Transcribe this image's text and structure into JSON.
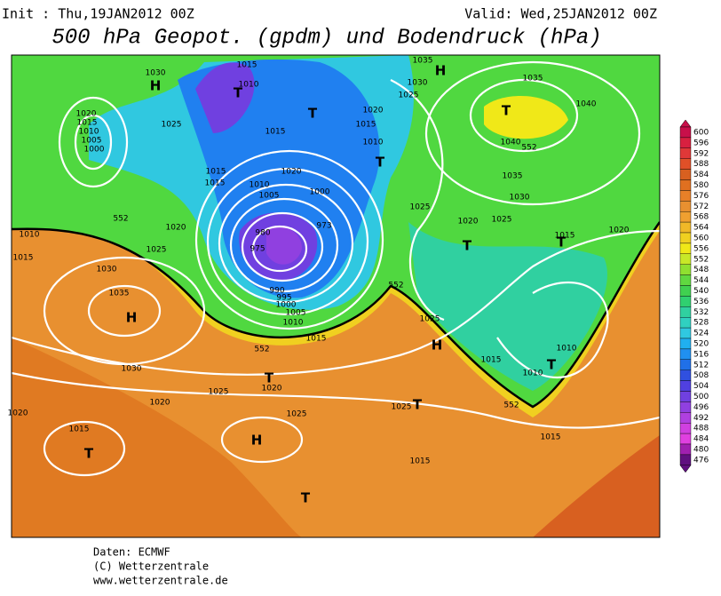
{
  "header": {
    "init": "Init : Thu,19JAN2012 00Z",
    "valid": "Valid: Wed,25JAN2012 00Z",
    "title": "500 hPa Geopot. (gpdm) und Bodendruck (hPa)"
  },
  "colorbar": {
    "labels": [
      600,
      596,
      592,
      588,
      584,
      580,
      576,
      572,
      568,
      564,
      560,
      556,
      552,
      548,
      544,
      540,
      536,
      532,
      528,
      524,
      520,
      516,
      512,
      508,
      504,
      500,
      496,
      492,
      488,
      484,
      480,
      476
    ],
    "colors": [
      "#c8104a",
      "#d82040",
      "#e03838",
      "#e05028",
      "#d86020",
      "#e07020",
      "#e88028",
      "#e89030",
      "#f0a030",
      "#f0b828",
      "#f0d020",
      "#f0e818",
      "#c8e828",
      "#90e030",
      "#60d840",
      "#40d050",
      "#30d070",
      "#30d0a0",
      "#30d0c0",
      "#30c8e0",
      "#20b0f0",
      "#2090f0",
      "#2070e8",
      "#3050e0",
      "#5040e0",
      "#7040e0",
      "#9040e0",
      "#b040e0",
      "#d040e0",
      "#e040e0",
      "#a020b0",
      "#601080"
    ]
  },
  "map": {
    "labels": [
      "1030",
      "H",
      "1015",
      "1010",
      "T",
      "1020",
      "1015",
      "1010",
      "1005",
      "1000",
      "1025",
      "T",
      "1015",
      "1020",
      "1015",
      "1010",
      "T",
      "1015",
      "1015",
      "1020",
      "1010",
      "1005",
      "1000",
      "973",
      "980",
      "975",
      "990",
      "995",
      "1000",
      "1005",
      "1010",
      "1015",
      "1035",
      "H",
      "1030",
      "1025",
      "1035",
      "1040",
      "T",
      "1040",
      "552",
      "1035",
      "1030",
      "1025",
      "1020",
      "1025",
      "1015",
      "T",
      "1020",
      "T",
      "1010",
      "1015",
      "1020",
      "552",
      "1025",
      "1030",
      "1035",
      "H",
      "1030",
      "1025",
      "1020",
      "1015",
      "T",
      "1020",
      "T",
      "1020",
      "552",
      "552",
      "1025",
      "H",
      "1015",
      "1010",
      "T",
      "1010",
      "552",
      "1025",
      "T",
      "1025",
      "H",
      "1015",
      "1015",
      "T"
    ]
  },
  "footer": [
    "Daten: ECMWF",
    "(C) Wetterzentrale",
    "www.wetterzentrale.de"
  ]
}
